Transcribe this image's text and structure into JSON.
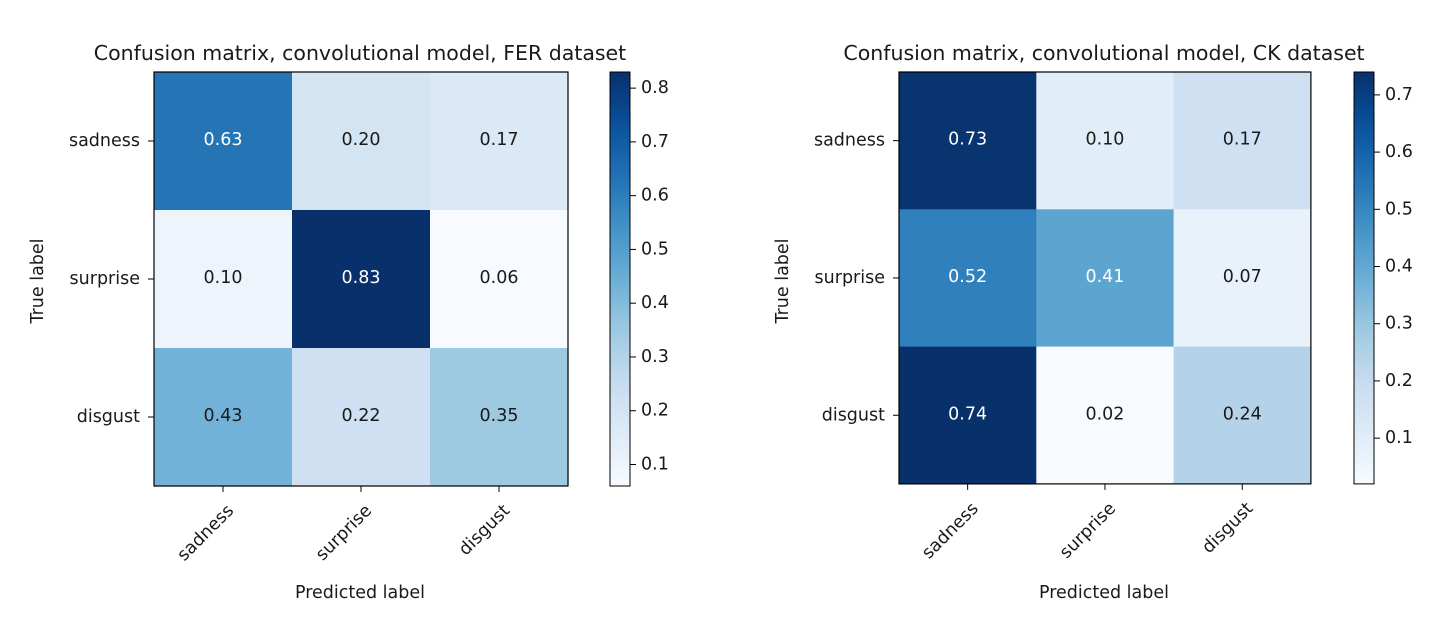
{
  "chart_data": [
    {
      "type": "heatmap",
      "title": "Confusion matrix, convolutional model, FER dataset",
      "xlabel": "Predicted label",
      "ylabel": "True label",
      "x_categories": [
        "sadness",
        "surprise",
        "disgust"
      ],
      "y_categories": [
        "sadness",
        "surprise",
        "disgust"
      ],
      "values": [
        [
          0.63,
          0.2,
          0.17
        ],
        [
          0.1,
          0.83,
          0.06
        ],
        [
          0.43,
          0.22,
          0.35
        ]
      ],
      "value_labels": [
        [
          "0.63",
          "0.20",
          "0.17"
        ],
        [
          "0.10",
          "0.83",
          "0.06"
        ],
        [
          "0.43",
          "0.22",
          "0.35"
        ]
      ],
      "colormap": "Blues",
      "colorbar": {
        "range": [
          0.06,
          0.83
        ],
        "ticks": [
          0.1,
          0.2,
          0.3,
          0.4,
          0.5,
          0.6,
          0.7,
          0.8
        ],
        "tick_labels": [
          "0.1",
          "0.2",
          "0.3",
          "0.4",
          "0.5",
          "0.6",
          "0.7",
          "0.8"
        ]
      }
    },
    {
      "type": "heatmap",
      "title": "Confusion matrix, convolutional model, CK dataset",
      "xlabel": "Predicted label",
      "ylabel": "True label",
      "x_categories": [
        "sadness",
        "surprise",
        "disgust"
      ],
      "y_categories": [
        "sadness",
        "surprise",
        "disgust"
      ],
      "values": [
        [
          0.73,
          0.1,
          0.17
        ],
        [
          0.52,
          0.41,
          0.07
        ],
        [
          0.74,
          0.02,
          0.24
        ]
      ],
      "value_labels": [
        [
          "0.73",
          "0.10",
          "0.17"
        ],
        [
          "0.52",
          "0.41",
          "0.07"
        ],
        [
          "0.74",
          "0.02",
          "0.24"
        ]
      ],
      "colormap": "Blues",
      "colorbar": {
        "range": [
          0.02,
          0.74
        ],
        "ticks": [
          0.1,
          0.2,
          0.3,
          0.4,
          0.5,
          0.6,
          0.7
        ],
        "tick_labels": [
          "0.1",
          "0.2",
          "0.3",
          "0.4",
          "0.5",
          "0.6",
          "0.7"
        ]
      }
    }
  ],
  "colors": {
    "colormap_stops": [
      "#f7fbff",
      "#deebf7",
      "#c6dbef",
      "#9ecae1",
      "#6baed6",
      "#4292c6",
      "#2171b5",
      "#08519c",
      "#08306b"
    ],
    "text_dark": "#1a1a1a",
    "text_light": "#ffffff"
  }
}
